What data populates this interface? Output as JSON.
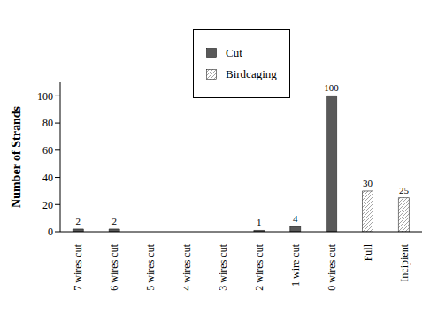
{
  "chart_data": {
    "type": "bar",
    "categories": [
      "7 wires cut",
      "6 wires cut",
      "5 wires cut",
      "4 wires cut",
      "3 wires cut",
      "2 wires cut",
      "1 wire cut",
      "0 wires cut",
      "Full",
      "Incipient"
    ],
    "series": [
      {
        "name": "Cut",
        "color": "#595959",
        "values": [
          2,
          2,
          0,
          0,
          0,
          1,
          4,
          100,
          null,
          null
        ]
      },
      {
        "name": "Birdcaging",
        "color": "#a6a6a6",
        "values": [
          null,
          null,
          null,
          null,
          null,
          null,
          null,
          null,
          30,
          25
        ]
      }
    ],
    "y_label": "Number of Strands",
    "ylim": [
      0,
      110
    ],
    "yticks": [
      0,
      20,
      40,
      60,
      80,
      100
    ],
    "stacked": true,
    "data_labels": true,
    "legend": "top"
  }
}
